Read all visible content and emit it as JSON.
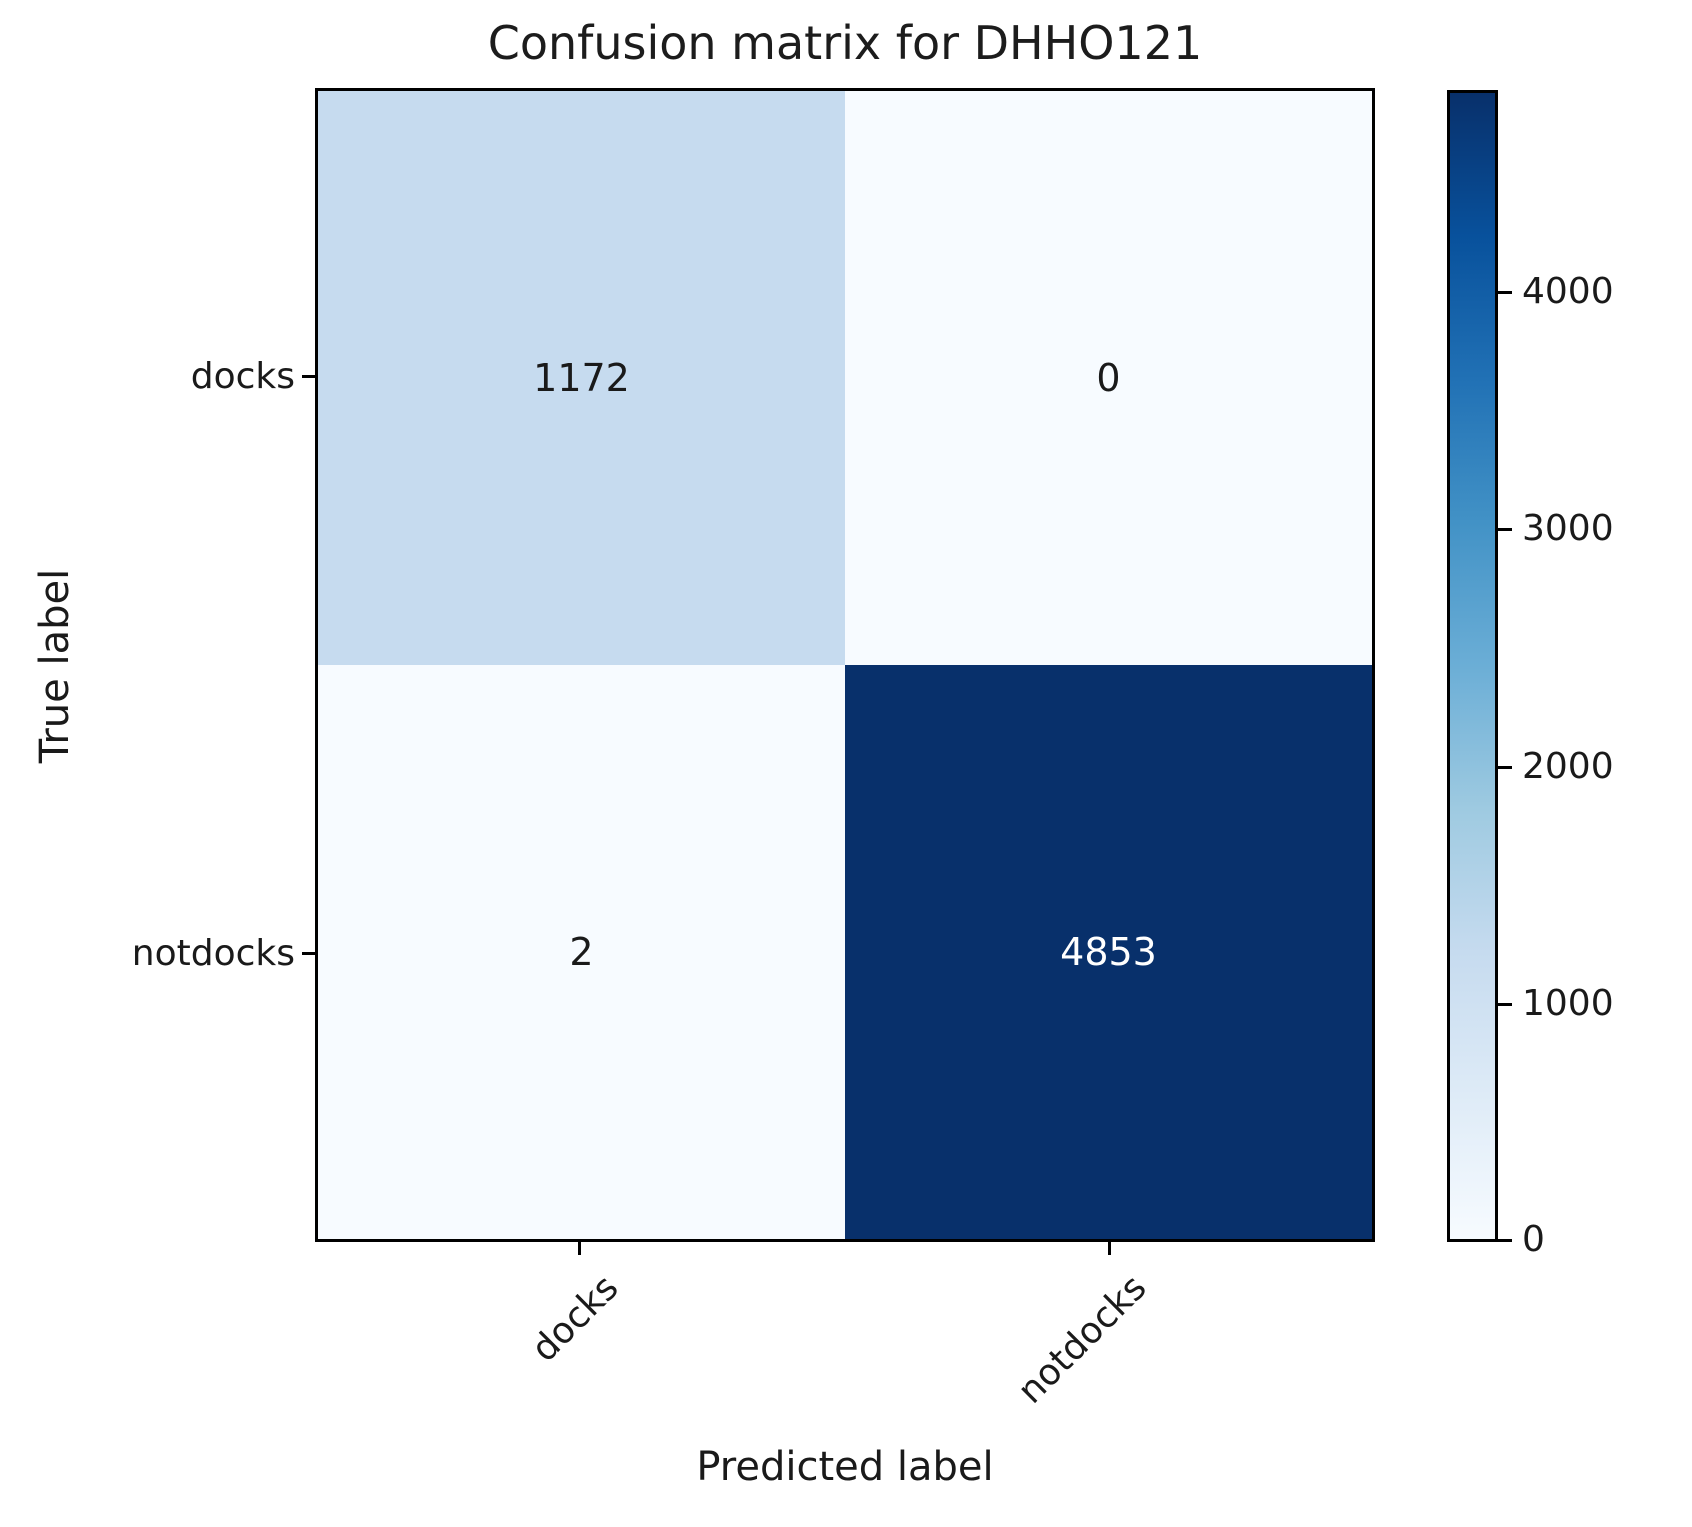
{
  "chart_data": {
    "type": "heatmap",
    "title": "Confusion matrix for DHHO121",
    "xlabel": "Predicted label",
    "ylabel": "True label",
    "x_categories": [
      "docks",
      "notdocks"
    ],
    "y_categories": [
      "docks",
      "notdocks"
    ],
    "matrix": [
      [
        1172,
        0
      ],
      [
        2,
        4853
      ]
    ],
    "colormap": "Blues",
    "colorbar": {
      "position": "right",
      "vmin": 0,
      "vmax": 4853,
      "ticks": [
        4000,
        3000,
        2000,
        1000,
        0
      ]
    },
    "colors": {
      "cell_true_docks_pred_docks": "#c6dbef",
      "cell_true_docks_pred_notdocks": "#f7fbff",
      "cell_true_notdocks_pred_docks": "#f7fbff",
      "cell_true_notdocks_pred_notdocks": "#08306b",
      "text_dark": "#1a1a1a",
      "text_light": "#ffffff",
      "border": "#000000",
      "background": "#ffffff"
    }
  },
  "styles": {
    "cell_00": "background:#c6dbef;color:#1a1a1a",
    "cell_01": "background:#f7fbff;color:#1a1a1a",
    "cell_10": "background:#f7fbff;color:#1a1a1a",
    "cell_11": "background:#08306b;color:#ffffff",
    "colorbar_gradient": "background:linear-gradient(to bottom,#08306b 0%,#08519c 12.5%,#2171b5 25%,#4292c6 37.5%,#6baed6 50%,#9ecae1 62.5%,#c6dbef 75%,#deebf7 87.5%,#f7fbff 100%)"
  }
}
